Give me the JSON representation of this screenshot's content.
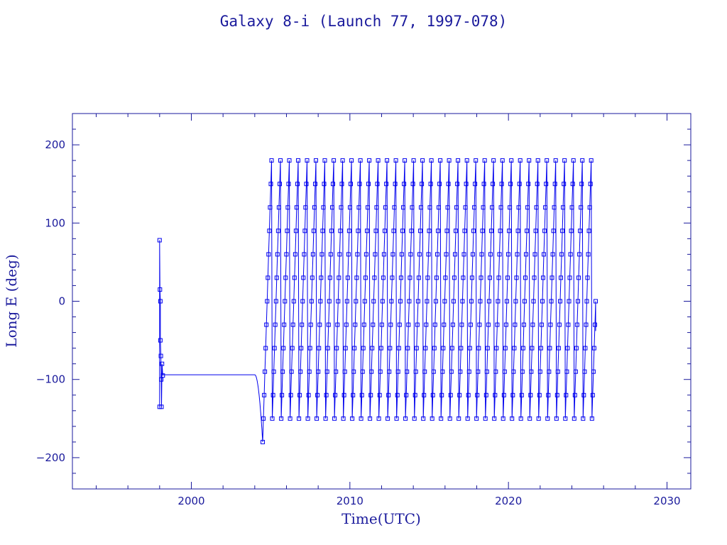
{
  "chart_data": {
    "type": "scatter",
    "title": "Galaxy 8-i (Launch 77, 1997-078)",
    "xlabel": "Time(UTC)",
    "ylabel": "Long E (deg)",
    "xlim": [
      1992.5,
      2031.5
    ],
    "ylim": [
      -240,
      240
    ],
    "x_ticks": [
      2000,
      2010,
      2020,
      2030
    ],
    "y_ticks": [
      -200,
      -100,
      0,
      100,
      200
    ],
    "x_minor_step": 2,
    "y_minor_step": 20,
    "grid": false,
    "legend": "none",
    "colors": {
      "series": "#0000ee",
      "axes": "#1a1a9c"
    },
    "series": [
      {
        "segments": [
          {
            "kind": "points",
            "x": [
              1998.0,
              1998.0,
              1998.02,
              1998.05,
              1998.05,
              1998.08,
              1998.1,
              1998.12,
              1998.15,
              1998.2
            ],
            "y": [
              -135,
              78,
              15,
              0,
              -50,
              -70,
              -100,
              -135,
              -80,
              -95
            ]
          },
          {
            "kind": "flat",
            "x_start": 1998.2,
            "x_end": 2004.0,
            "y": -94
          },
          {
            "kind": "descent",
            "x_start": 2004.0,
            "x_end": 2004.5,
            "y_start": -94,
            "y_end": -180
          },
          {
            "kind": "drift",
            "x_start": 2004.5,
            "x_end": 2025.5,
            "y_min": -180,
            "y_max": 180,
            "period_years": 0.56,
            "end_value": -38
          }
        ]
      }
    ]
  }
}
